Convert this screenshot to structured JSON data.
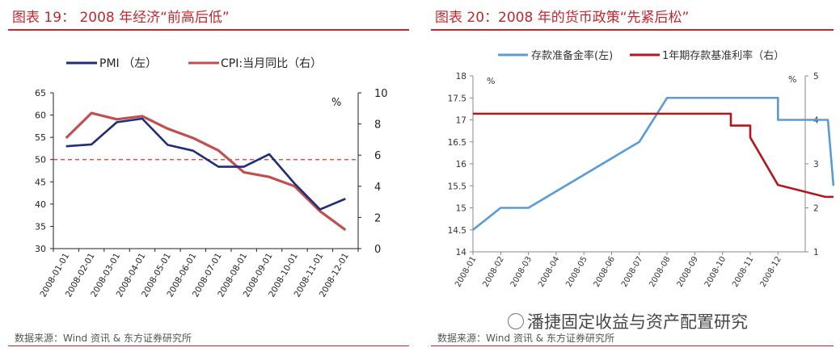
{
  "left": {
    "title": "图表 19：  2008 年经济“前高后低”",
    "source": "数据来源：Wind 资讯 & 东方证券研究所"
  },
  "right": {
    "title": "图表 20：2008 年的货币政策“先紧后松”",
    "source": "数据来源：Wind 资讯 & 东方证券研究所",
    "watermark": "潘捷固定收益与资产配置研究"
  },
  "colors": {
    "title": "#c0282e",
    "pmi": "#1f2d7a",
    "cpi": "#c0504d",
    "rrr": "#5b9bd5",
    "rate": "#b5161c",
    "threshold": "#e03030"
  },
  "chart_data": [
    {
      "type": "line",
      "x": [
        "2008-01-01",
        "2008-02-01",
        "2008-03-01",
        "2008-04-01",
        "2008-05-01",
        "2008-06-01",
        "2008-07-01",
        "2008-08-01",
        "2008-09-01",
        "2008-10-01",
        "2008-11-01",
        "2008-12-01"
      ],
      "series": [
        {
          "name": "PMI （左）",
          "axis": "left",
          "values": [
            53.0,
            53.4,
            58.4,
            59.2,
            53.3,
            52.0,
            48.4,
            48.4,
            51.2,
            44.6,
            38.8,
            41.2
          ]
        },
        {
          "name": "CPI:当月同比（右）",
          "axis": "right",
          "values": [
            7.1,
            8.7,
            8.3,
            8.5,
            7.7,
            7.1,
            6.3,
            4.9,
            4.6,
            4.0,
            2.4,
            1.2
          ]
        }
      ],
      "reference_line": {
        "axis": "left",
        "value": 50
      },
      "ylim_left": [
        30,
        65
      ],
      "yticks_left": [
        "30",
        "35",
        "40",
        "45",
        "50",
        "55",
        "60",
        "65"
      ],
      "ylim_right": [
        0,
        10
      ],
      "yticks_right": [
        "0",
        "2",
        "4",
        "6",
        "8",
        "10"
      ],
      "right_unit": "%",
      "legend": [
        "PMI （左）",
        "CPI:当月同比（右）"
      ]
    },
    {
      "type": "line",
      "x_ticks": [
        "2008-01",
        "2008-02",
        "2008-03",
        "2008-04",
        "2008-05",
        "2008-06",
        "2008-07",
        "2008-08",
        "2008-09",
        "2008-10",
        "2008-11",
        "2008-12"
      ],
      "series": [
        {
          "name": "存款准备金率(左)",
          "axis": "left",
          "points": [
            [
              0,
              14.5
            ],
            [
              1,
              15.0
            ],
            [
              2,
              15.0
            ],
            [
              6,
              16.5
            ],
            [
              7,
              17.5
            ],
            [
              11.0,
              17.5
            ],
            [
              11.0,
              17.0
            ],
            [
              12.8,
              17.0
            ],
            [
              13.0,
              15.5
            ]
          ]
        },
        {
          "name": "1年期存款基准利率（右）",
          "axis": "right",
          "points": [
            [
              0,
              4.14
            ],
            [
              9.3,
              4.14
            ],
            [
              9.3,
              3.87
            ],
            [
              10.0,
              3.87
            ],
            [
              10.0,
              3.6
            ],
            [
              11.0,
              2.52
            ],
            [
              12.7,
              2.25
            ],
            [
              13.0,
              2.25
            ]
          ]
        }
      ],
      "ylim_left": [
        14,
        18
      ],
      "yticks_left": [
        "14",
        "14.5",
        "15",
        "15.5",
        "16",
        "16.5",
        "17",
        "17.5",
        "18"
      ],
      "ylim_right": [
        1,
        5
      ],
      "yticks_right": [
        "1",
        "2",
        "3",
        "4",
        "5"
      ],
      "left_unit": "%",
      "right_unit": "%",
      "legend": [
        "存款准备金率(左)",
        "1年期存款基准利率（右）"
      ]
    }
  ]
}
